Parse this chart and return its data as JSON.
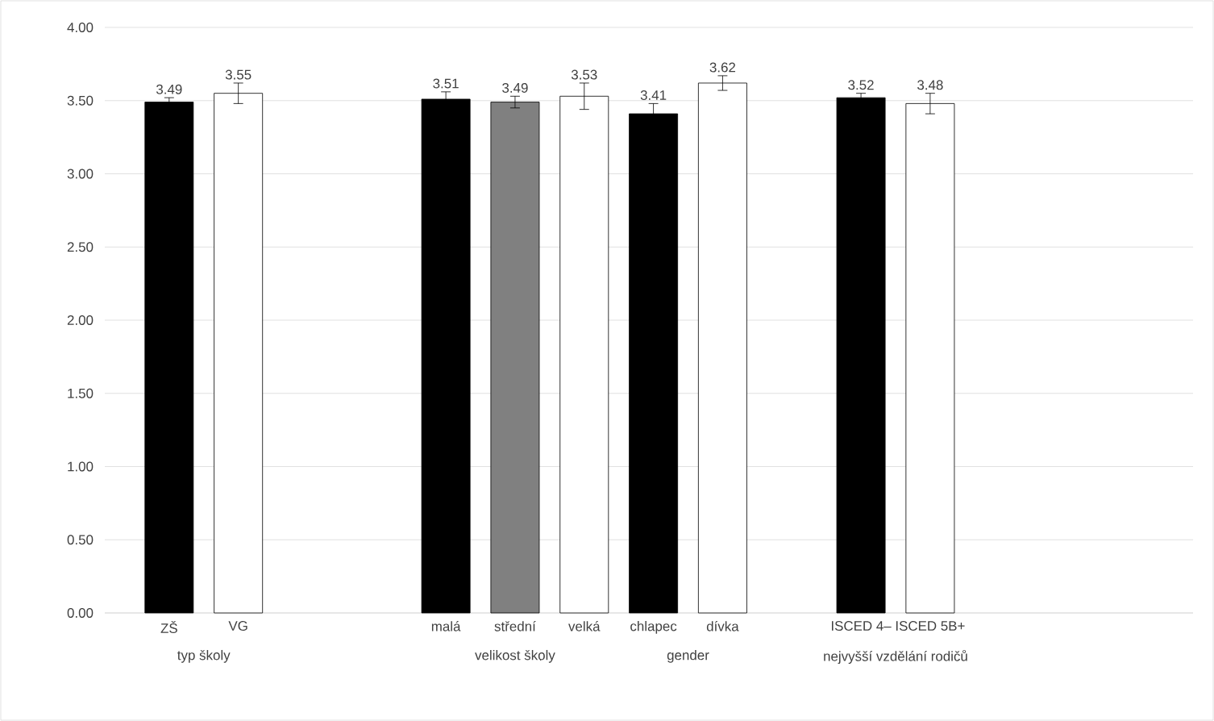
{
  "chart_data": {
    "type": "bar",
    "categories": [
      "ZŠ",
      "VG",
      null,
      null,
      "malá",
      "střední",
      "velká",
      "chlapec",
      "dívka",
      null,
      "ISCED 4–",
      "ISCED 5B+"
    ],
    "values": [
      3.49,
      3.55,
      null,
      null,
      3.51,
      3.49,
      3.53,
      3.41,
      3.62,
      null,
      3.52,
      3.48
    ],
    "errors": [
      0.03,
      0.07,
      null,
      null,
      0.05,
      0.04,
      0.09,
      0.07,
      0.05,
      null,
      0.03,
      0.07
    ],
    "value_labels": [
      "3.49",
      "3.55",
      null,
      null,
      "3.51",
      "3.49",
      "3.53",
      "3.41",
      "3.62",
      null,
      "3.52",
      "3.48"
    ],
    "colors": [
      "#000000",
      "#ffffff",
      null,
      null,
      "#000000",
      "#808080",
      "#ffffff",
      "#000000",
      "#ffffff",
      null,
      "#000000",
      "#ffffff"
    ],
    "annotations": [
      "typ školy",
      "velikost školy",
      "gender",
      "nejvyšší vzdělání rodičů"
    ],
    "ylim": [
      0,
      4
    ],
    "yticks": [
      {
        "value": 0,
        "label": "0.00"
      },
      {
        "value": 0.5,
        "label": "0.50"
      },
      {
        "value": 1,
        "label": "1.00"
      },
      {
        "value": 1.5,
        "label": "1.50"
      },
      {
        "value": 2,
        "label": "2.00"
      },
      {
        "value": 2.5,
        "label": "2.50"
      },
      {
        "value": 3,
        "label": "3.00"
      },
      {
        "value": 3.5,
        "label": "3.50"
      },
      {
        "value": 4,
        "label": "4.00"
      }
    ],
    "grid": "y"
  }
}
